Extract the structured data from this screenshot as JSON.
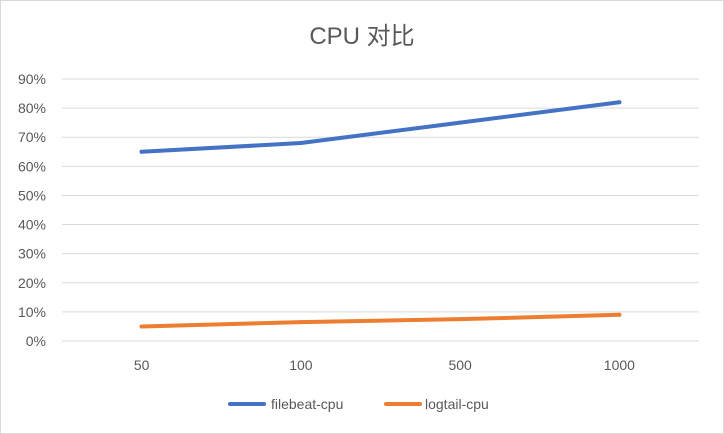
{
  "chart_data": {
    "type": "line",
    "title": "CPU 对比",
    "xlabel": "",
    "ylabel": "",
    "categories": [
      "50",
      "100",
      "500",
      "1000"
    ],
    "ylim": [
      0,
      90
    ],
    "y_ticks": [
      "0%",
      "10%",
      "20%",
      "30%",
      "40%",
      "50%",
      "60%",
      "70%",
      "80%",
      "90%"
    ],
    "grid": true,
    "legend_position": "bottom",
    "series": [
      {
        "name": "filebeat-cpu",
        "values": [
          65,
          68,
          75,
          82
        ],
        "color": "#4472c4"
      },
      {
        "name": "logtail-cpu",
        "values": [
          5,
          6.5,
          7.5,
          9
        ],
        "color": "#ed7d31"
      }
    ]
  }
}
